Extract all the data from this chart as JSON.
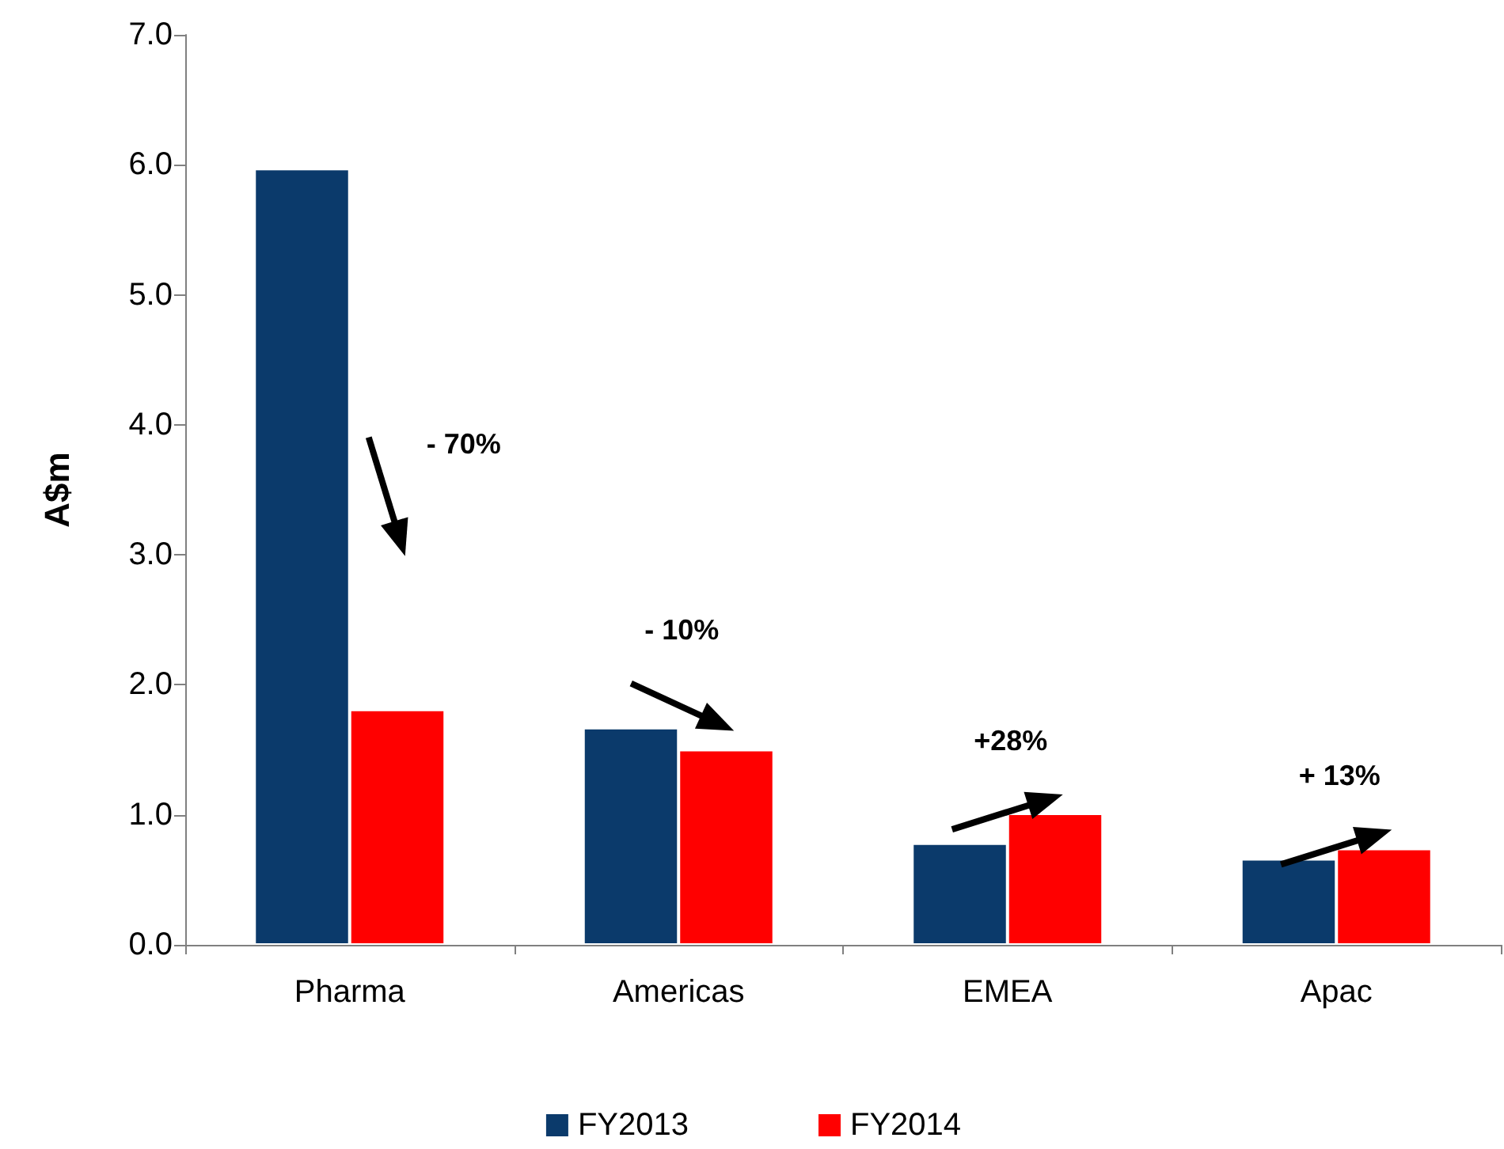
{
  "chart_data": {
    "type": "bar",
    "ylabel": "A$m",
    "categories": [
      "Pharma",
      "Americas",
      "EMEA",
      "Apac"
    ],
    "series": [
      {
        "name": "FY2013",
        "color": "#0b3a6b",
        "values": [
          5.97,
          1.67,
          0.78,
          0.66
        ]
      },
      {
        "name": "FY2014",
        "color": "#ff0000",
        "values": [
          1.81,
          1.5,
          1.01,
          0.74
        ]
      }
    ],
    "ylim": [
      0,
      7
    ],
    "yticks": [
      {
        "value": 0,
        "label": "0.0"
      },
      {
        "value": 1,
        "label": "1.0"
      },
      {
        "value": 2,
        "label": "2.0"
      },
      {
        "value": 3,
        "label": "3.0"
      },
      {
        "value": 4,
        "label": "4.0"
      },
      {
        "value": 5,
        "label": "5.0"
      },
      {
        "value": 6,
        "label": "6.0"
      },
      {
        "value": 7,
        "label": "7.0"
      }
    ],
    "annotations": [
      "- 70%",
      "- 10%",
      "+28%",
      "+ 13%"
    ],
    "legend": "bottom",
    "grid": false
  }
}
